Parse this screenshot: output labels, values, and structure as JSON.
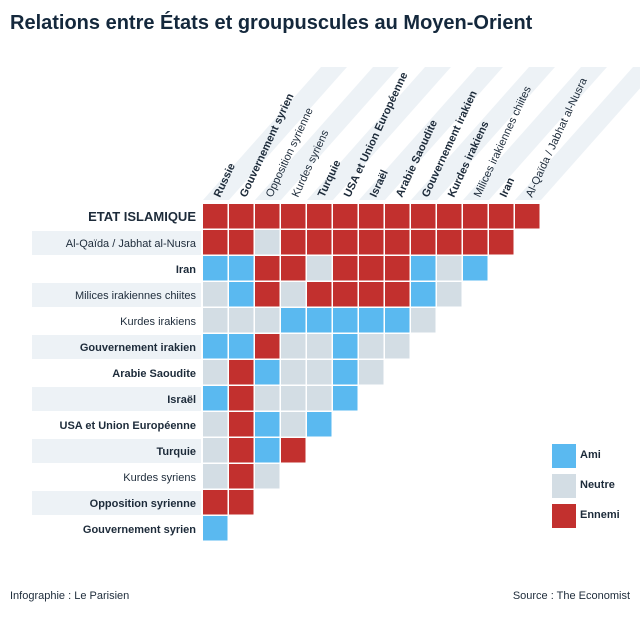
{
  "title": "Relations entre États et groupuscules au Moyen-Orient",
  "footer": {
    "credit": "Infographie : Le Parisien",
    "source": "Source : The Economist"
  },
  "legend": [
    {
      "code": "A",
      "label": "Ami",
      "color": "#5ab9f0"
    },
    {
      "code": "N",
      "label": "Neutre",
      "color": "#d3dde4"
    },
    {
      "code": "E",
      "label": "Ennemi",
      "color": "#c2302e"
    }
  ],
  "chart_data": {
    "type": "heatmap",
    "row_labels": [
      {
        "label": "ETAT ISLAMIQUE",
        "style": "heavy"
      },
      {
        "label": "Al-Qaïda / Jabhat al-Nusra",
        "style": "normal"
      },
      {
        "label": "Iran",
        "style": "bold"
      },
      {
        "label": "Milices irakiennes chiites",
        "style": "normal"
      },
      {
        "label": "Kurdes irakiens",
        "style": "normal"
      },
      {
        "label": "Gouvernement irakien",
        "style": "bold"
      },
      {
        "label": "Arabie Saoudite",
        "style": "bold"
      },
      {
        "label": "Israël",
        "style": "bold"
      },
      {
        "label": "USA et Union Européenne",
        "style": "bold"
      },
      {
        "label": "Turquie",
        "style": "bold"
      },
      {
        "label": "Kurdes syriens",
        "style": "normal"
      },
      {
        "label": "Opposition syrienne",
        "style": "bold"
      },
      {
        "label": "Gouvernement syrien",
        "style": "bold"
      }
    ],
    "column_labels": [
      {
        "label": "Russie",
        "style": "bold"
      },
      {
        "label": "Gouvernement syrien",
        "style": "bold"
      },
      {
        "label": "Opposition syrienne",
        "style": "normal"
      },
      {
        "label": "Kurdes syriens",
        "style": "normal"
      },
      {
        "label": "Turquie",
        "style": "bold"
      },
      {
        "label": "USA et Union Européenne",
        "style": "bold"
      },
      {
        "label": "Israël",
        "style": "bold"
      },
      {
        "label": "Arabie Saoudite",
        "style": "bold"
      },
      {
        "label": "Gouvernement irakien",
        "style": "bold"
      },
      {
        "label": "Kurdes irakiens",
        "style": "bold"
      },
      {
        "label": "Milices irakiennes chiites",
        "style": "normal"
      },
      {
        "label": "Iran",
        "style": "bold"
      },
      {
        "label": "Al-Qaïda / Jabhat al-Nusra",
        "style": "normal"
      }
    ],
    "values": [
      [
        "E",
        "E",
        "E",
        "E",
        "E",
        "E",
        "E",
        "E",
        "E",
        "E",
        "E",
        "E",
        "E"
      ],
      [
        "E",
        "E",
        "N",
        "E",
        "E",
        "E",
        "E",
        "E",
        "E",
        "E",
        "E",
        "E"
      ],
      [
        "A",
        "A",
        "E",
        "E",
        "N",
        "E",
        "E",
        "E",
        "A",
        "N",
        "A"
      ],
      [
        "N",
        "A",
        "E",
        "N",
        "E",
        "E",
        "E",
        "E",
        "A",
        "N"
      ],
      [
        "N",
        "N",
        "N",
        "A",
        "A",
        "A",
        "A",
        "A",
        "N"
      ],
      [
        "A",
        "A",
        "E",
        "N",
        "N",
        "A",
        "N",
        "N"
      ],
      [
        "N",
        "E",
        "A",
        "N",
        "N",
        "A",
        "N"
      ],
      [
        "A",
        "E",
        "N",
        "N",
        "N",
        "A"
      ],
      [
        "N",
        "E",
        "A",
        "N",
        "A"
      ],
      [
        "N",
        "E",
        "A",
        "E"
      ],
      [
        "N",
        "E",
        "N"
      ],
      [
        "E",
        "E"
      ],
      [
        "A"
      ]
    ]
  }
}
